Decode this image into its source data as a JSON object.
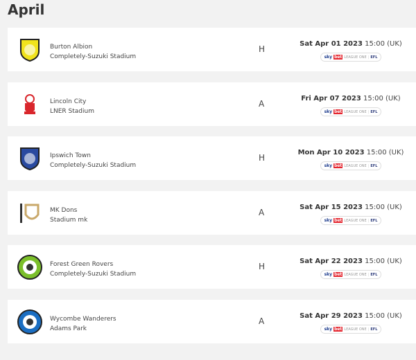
{
  "heading": "April",
  "badge": {
    "sky": "sky",
    "bet": "bet",
    "league": "LEAGUE ONE",
    "efl": "EFL"
  },
  "fixtures": [
    {
      "team": "Burton Albion",
      "stadium": "Completely-Suzuki Stadium",
      "venue": "H",
      "date": "Sat Apr 01 2023",
      "time": "15:00 (UK)",
      "crest_color": "#f1e31c",
      "crest_shape": "shield",
      "crest_icon": "burton-crest"
    },
    {
      "team": "Lincoln City",
      "stadium": "LNER Stadium",
      "venue": "A",
      "date": "Fri Apr 07 2023",
      "time": "15:00 (UK)",
      "crest_color": "#d9262c",
      "crest_shape": "imp",
      "crest_icon": "lincoln-crest"
    },
    {
      "team": "Ipswich Town",
      "stadium": "Completely-Suzuki Stadium",
      "venue": "H",
      "date": "Mon Apr 10 2023",
      "time": "15:00 (UK)",
      "crest_color": "#2a4aa0",
      "crest_shape": "shield",
      "crest_icon": "ipswich-crest"
    },
    {
      "team": "MK Dons",
      "stadium": "Stadium mk",
      "venue": "A",
      "date": "Sat Apr 15 2023",
      "time": "15:00 (UK)",
      "crest_color": "#c9a86a",
      "crest_shape": "mk",
      "crest_icon": "mk-dons-crest"
    },
    {
      "team": "Forest Green Rovers",
      "stadium": "Completely-Suzuki Stadium",
      "venue": "H",
      "date": "Sat Apr 22 2023",
      "time": "15:00 (UK)",
      "crest_color": "#7bbf2a",
      "crest_shape": "circle",
      "crest_icon": "forest-green-crest"
    },
    {
      "team": "Wycombe Wanderers",
      "stadium": "Adams Park",
      "venue": "A",
      "date": "Sat Apr 29 2023",
      "time": "15:00 (UK)",
      "crest_color": "#1b6ec2",
      "crest_shape": "circle",
      "crest_icon": "wycombe-crest"
    }
  ]
}
